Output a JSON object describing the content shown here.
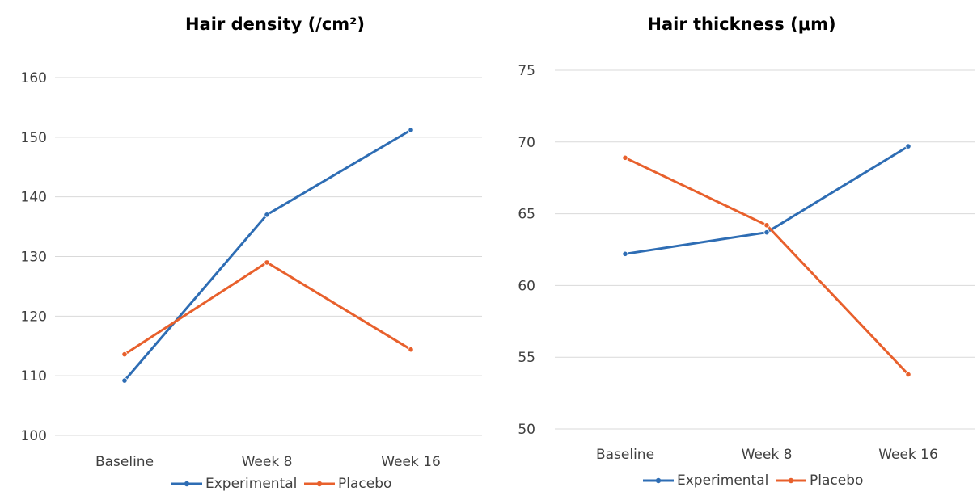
{
  "chart_data": [
    {
      "type": "line",
      "title": "Hair density (/cm²)",
      "xlabel": "",
      "ylabel": "",
      "categories": [
        "Baseline",
        "Week 8",
        "Week 16"
      ],
      "ylim": [
        100,
        160
      ],
      "yticks": [
        100,
        110,
        120,
        130,
        140,
        150,
        160
      ],
      "grid": true,
      "legend": "bottom",
      "series": [
        {
          "name": "Experimental",
          "color": "#2e6db4",
          "values": [
            109.2,
            137.0,
            151.2
          ]
        },
        {
          "name": "Placebo",
          "color": "#e8602c",
          "values": [
            113.6,
            129.0,
            114.4
          ]
        }
      ]
    },
    {
      "type": "line",
      "title": "Hair thickness (μm)",
      "xlabel": "",
      "ylabel": "",
      "categories": [
        "Baseline",
        "Week 8",
        "Week 16"
      ],
      "ylim": [
        50,
        75
      ],
      "yticks": [
        50,
        55,
        60,
        65,
        70,
        75
      ],
      "grid": true,
      "legend": "bottom",
      "series": [
        {
          "name": "Experimental",
          "color": "#2e6db4",
          "values": [
            62.2,
            63.7,
            69.7
          ]
        },
        {
          "name": "Placebo",
          "color": "#e8602c",
          "values": [
            68.9,
            64.2,
            53.8
          ]
        }
      ]
    }
  ]
}
